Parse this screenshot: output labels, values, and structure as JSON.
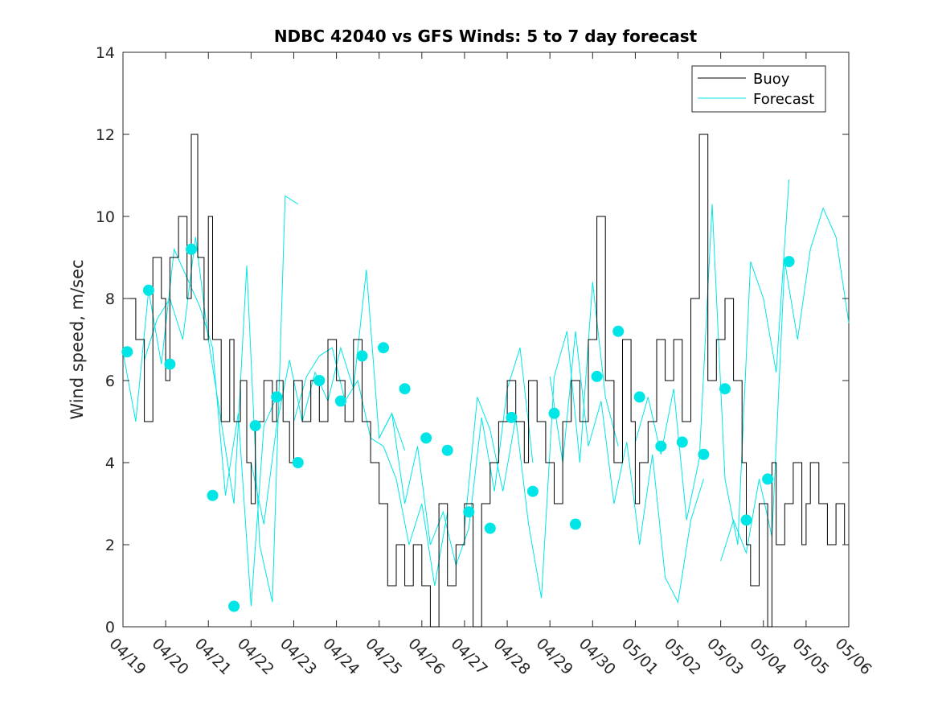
{
  "chart_data": {
    "type": "line",
    "title": "NDBC 42040 vs GFS Winds: 5 to 7 day forecast",
    "xlabel": "",
    "ylabel": "Wind speed, m/sec",
    "xlim": [
      "04/19",
      "05/06"
    ],
    "ylim": [
      0,
      14
    ],
    "yticks": [
      0,
      2,
      4,
      6,
      8,
      10,
      12,
      14
    ],
    "xtick_labels": [
      "04/19",
      "04/20",
      "04/21",
      "04/22",
      "04/23",
      "04/24",
      "04/25",
      "04/26",
      "04/27",
      "04/28",
      "04/29",
      "04/30",
      "05/01",
      "05/02",
      "05/03",
      "05/04",
      "05/05",
      "05/06"
    ],
    "legend": {
      "position": "top-right",
      "entries": [
        "Buoy",
        "Forecast"
      ]
    },
    "colors": {
      "buoy": "#000000",
      "forecast": "#00e6e6",
      "marker": "#00e6e6"
    },
    "series": [
      {
        "name": "Buoy",
        "x_days": [
          0.0,
          0.3,
          0.5,
          0.7,
          0.9,
          1.0,
          1.1,
          1.3,
          1.5,
          1.6,
          1.75,
          1.9,
          2.0,
          2.1,
          2.3,
          2.5,
          2.6,
          2.75,
          2.9,
          3.0,
          3.1,
          3.3,
          3.5,
          3.6,
          3.75,
          3.9,
          4.0,
          4.2,
          4.4,
          4.6,
          4.8,
          5.0,
          5.2,
          5.4,
          5.6,
          5.8,
          6.0,
          6.2,
          6.4,
          6.6,
          6.8,
          7.0,
          7.2,
          7.4,
          7.6,
          7.8,
          8.0,
          8.2,
          8.4,
          8.6,
          8.8,
          9.0,
          9.2,
          9.4,
          9.5,
          9.7,
          9.9,
          10.1,
          10.3,
          10.5,
          10.7,
          10.9,
          11.1,
          11.3,
          11.5,
          11.7,
          11.9,
          12.0,
          12.1,
          12.3,
          12.5,
          12.7,
          12.9,
          13.1,
          13.3,
          13.5,
          13.7,
          13.9,
          14.1,
          14.3,
          14.5,
          14.6,
          14.7,
          14.9,
          15.1,
          15.2,
          15.3,
          15.5,
          15.7,
          15.9,
          16.0,
          16.1,
          16.3,
          16.5,
          16.7,
          16.9,
          17.0
        ],
        "values": [
          8,
          7,
          5,
          9,
          8,
          6,
          9,
          10,
          8,
          12,
          9,
          7,
          10,
          7,
          5,
          7,
          5,
          6,
          4,
          3,
          5,
          6,
          5,
          6,
          5,
          4,
          6,
          5,
          6,
          5,
          7,
          6,
          5,
          7,
          5,
          4,
          3,
          1,
          2,
          1,
          2,
          1,
          0,
          3,
          1,
          2,
          3,
          0,
          3,
          4,
          5,
          6,
          5,
          4,
          6,
          5,
          4,
          3,
          5,
          6,
          5,
          7,
          10,
          6,
          4,
          7,
          5,
          3,
          4,
          5,
          7,
          6,
          7,
          5,
          8,
          12,
          6,
          7,
          8,
          6,
          4,
          2,
          1,
          3,
          0,
          4,
          2,
          3,
          4,
          2,
          3,
          4,
          3,
          2,
          3,
          2,
          2
        ]
      }
    ],
    "forecast_traces": [
      {
        "x_days": [
          0.0,
          0.3,
          0.6,
          0.9,
          1.2,
          1.5,
          1.8,
          2.1,
          2.4,
          2.7,
          3.0,
          3.3,
          3.6
        ],
        "values": [
          6.7,
          5.0,
          8.2,
          6.4,
          9.2,
          8.5,
          7.8,
          6.8,
          3.2,
          5.2,
          0.5,
          4.9,
          5.6
        ]
      },
      {
        "x_days": [
          0.5,
          0.8,
          1.1,
          1.4,
          1.7,
          2.0,
          2.3,
          2.6,
          2.9,
          3.2,
          3.5,
          3.8,
          4.1
        ],
        "values": [
          6.5,
          7.5,
          8.0,
          7.0,
          9.5,
          7.0,
          5.0,
          3.0,
          8.8,
          2.0,
          0.6,
          10.5,
          10.3
        ]
      },
      {
        "x_days": [
          3.0,
          3.3,
          3.6,
          3.9,
          4.2,
          4.5,
          4.8,
          5.1,
          5.4,
          5.7,
          6.0,
          6.3,
          6.6
        ],
        "values": [
          4.0,
          2.5,
          4.9,
          6.5,
          5.0,
          6.2,
          5.5,
          6.8,
          5.8,
          8.7,
          4.6,
          5.2,
          4.3
        ]
      },
      {
        "x_days": [
          4.0,
          4.3,
          4.6,
          4.9,
          5.2,
          5.5,
          5.8,
          6.1,
          6.4,
          6.7,
          7.0,
          7.3,
          7.6
        ],
        "values": [
          5.0,
          6.1,
          6.6,
          6.8,
          5.5,
          6.0,
          4.6,
          4.4,
          3.6,
          2.0,
          3.0,
          1.0,
          2.8
        ]
      },
      {
        "x_days": [
          6.0,
          6.3,
          6.6,
          6.9,
          7.2,
          7.5,
          7.8,
          8.1,
          8.4,
          8.7,
          9.0,
          9.3,
          9.6
        ],
        "values": [
          4.6,
          5.2,
          3.0,
          4.4,
          2.0,
          2.8,
          1.5,
          2.4,
          5.1,
          3.3,
          5.8,
          6.8,
          4.0
        ]
      },
      {
        "x_days": [
          8.0,
          8.3,
          8.6,
          8.9,
          9.2,
          9.5,
          9.8,
          10.1,
          10.4,
          10.7,
          11.0,
          11.3,
          11.6
        ],
        "values": [
          2.4,
          5.6,
          4.8,
          3.3,
          5.1,
          2.5,
          0.7,
          6.1,
          7.2,
          4.0,
          8.4,
          5.6,
          4.4
        ]
      },
      {
        "x_days": [
          10.0,
          10.3,
          10.6,
          10.9,
          11.2,
          11.5,
          11.8,
          12.1,
          12.4,
          12.7,
          13.0,
          13.3,
          13.6
        ],
        "values": [
          6.1,
          4.0,
          7.2,
          4.4,
          5.5,
          3.0,
          4.5,
          2.0,
          4.2,
          1.2,
          0.6,
          2.6,
          3.6
        ]
      },
      {
        "x_days": [
          12.0,
          12.3,
          12.6,
          12.9,
          13.2,
          13.5,
          13.8,
          14.1,
          14.4,
          14.7,
          15.0,
          15.3,
          15.6
        ],
        "values": [
          4.5,
          5.6,
          4.2,
          5.8,
          2.6,
          4.1,
          10.3,
          3.6,
          2.0,
          8.9,
          8.0,
          6.2,
          10.9
        ]
      },
      {
        "x_days": [
          14.0,
          14.3,
          14.6,
          14.9,
          15.2,
          15.5,
          15.8,
          16.1,
          16.4,
          16.7,
          17.0
        ],
        "values": [
          1.6,
          2.6,
          1.8,
          3.6,
          2.2,
          8.9,
          7.0,
          9.2,
          10.2,
          9.5,
          7.4
        ]
      }
    ],
    "markers": {
      "x_days": [
        0.1,
        0.6,
        1.1,
        1.6,
        2.1,
        2.6,
        3.1,
        3.6,
        4.1,
        4.6,
        5.1,
        5.6,
        6.1,
        6.6,
        7.1,
        7.6,
        8.1,
        8.6,
        9.1,
        9.6,
        10.1,
        10.6,
        11.1,
        11.6,
        12.1,
        12.6,
        13.1,
        13.6,
        14.1,
        14.6,
        15.1,
        15.6
      ],
      "values": [
        6.7,
        8.2,
        6.4,
        9.2,
        3.2,
        0.5,
        4.9,
        5.6,
        4.0,
        6.0,
        5.5,
        6.6,
        6.8,
        5.8,
        4.6,
        4.3,
        2.8,
        2.4,
        5.1,
        3.3,
        5.2,
        2.5,
        6.1,
        7.2,
        5.6,
        4.4,
        4.5,
        4.2,
        5.8,
        2.6,
        3.6,
        8.9
      ]
    }
  }
}
